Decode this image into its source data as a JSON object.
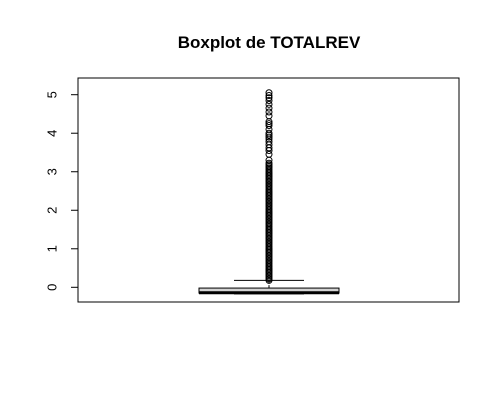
{
  "chart_data": {
    "type": "boxplot",
    "title": "Boxplot de TOTALREV",
    "xlabel": "",
    "ylabel": "",
    "ylim": [
      -0.2,
      5.2
    ],
    "yticks": [
      0,
      1,
      2,
      3,
      4,
      5
    ],
    "ytick_labels": [
      "0",
      "1",
      "2",
      "3",
      "4",
      "5"
    ],
    "grid": false,
    "box": {
      "whisker_low": -0.17,
      "q1": -0.15,
      "median": -0.14,
      "q3": -0.02,
      "whisker_high": 0.18
    },
    "outliers": [
      0.18,
      0.22,
      0.26,
      0.3,
      0.34,
      0.38,
      0.42,
      0.46,
      0.5,
      0.54,
      0.58,
      0.62,
      0.66,
      0.7,
      0.74,
      0.78,
      0.82,
      0.86,
      0.9,
      0.94,
      0.98,
      1.02,
      1.06,
      1.1,
      1.14,
      1.18,
      1.22,
      1.26,
      1.3,
      1.34,
      1.38,
      1.42,
      1.46,
      1.5,
      1.54,
      1.58,
      1.62,
      1.66,
      1.7,
      1.74,
      1.78,
      1.82,
      1.86,
      1.9,
      1.94,
      1.98,
      2.02,
      2.06,
      2.1,
      2.14,
      2.18,
      2.22,
      2.26,
      2.3,
      2.34,
      2.38,
      2.42,
      2.46,
      2.5,
      2.54,
      2.58,
      2.62,
      2.66,
      2.7,
      2.74,
      2.78,
      2.82,
      2.86,
      2.9,
      2.94,
      2.98,
      3.02,
      3.06,
      3.1,
      3.14,
      3.18,
      3.22,
      3.3,
      3.45,
      3.55,
      3.62,
      3.7,
      3.78,
      3.85,
      3.9,
      3.95,
      4.0,
      4.1,
      4.2,
      4.25,
      4.3,
      4.45,
      4.55,
      4.65,
      4.75,
      4.85,
      4.92,
      4.98,
      5.05
    ]
  },
  "colors": {
    "box_fill": "#d3d3d3",
    "stroke": "#000000",
    "background": "#ffffff"
  }
}
